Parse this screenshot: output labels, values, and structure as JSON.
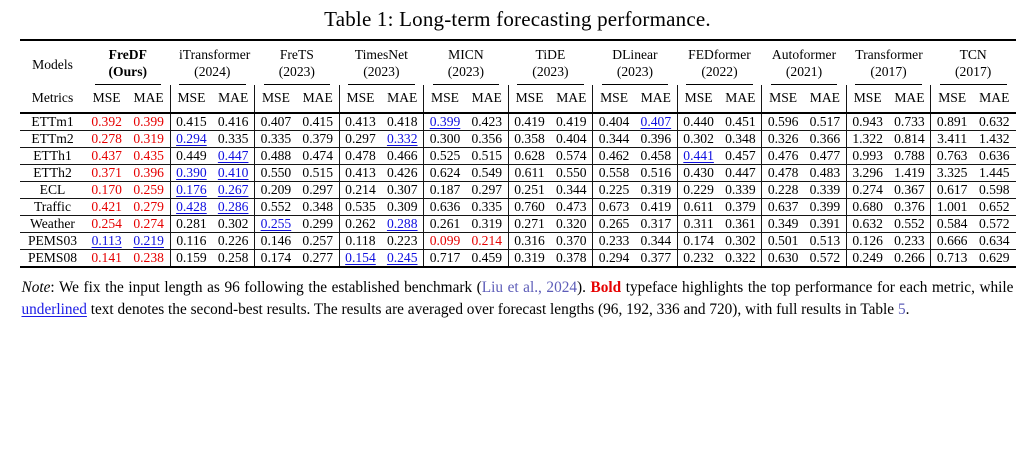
{
  "title": "Table 1: Long-term forecasting performance.",
  "colors": {
    "best_value": "#e60000",
    "second_best_value": "#0f0fe0",
    "citation_link": "#5c5cb8",
    "rule": "#000000",
    "background": "#ffffff"
  },
  "table": {
    "models_label": "Models",
    "metrics_label": "Metrics",
    "metrics": [
      "MSE",
      "MAE"
    ],
    "models": [
      {
        "name": "FreDF",
        "year": "(Ours)",
        "emph": true
      },
      {
        "name": "iTransformer",
        "year": "(2024)",
        "emph": false
      },
      {
        "name": "FreTS",
        "year": "(2023)",
        "emph": false
      },
      {
        "name": "TimesNet",
        "year": "(2023)",
        "emph": false
      },
      {
        "name": "MICN",
        "year": "(2023)",
        "emph": false
      },
      {
        "name": "TiDE",
        "year": "(2023)",
        "emph": false
      },
      {
        "name": "DLinear",
        "year": "(2023)",
        "emph": false
      },
      {
        "name": "FEDformer",
        "year": "(2022)",
        "emph": false
      },
      {
        "name": "Autoformer",
        "year": "(2021)",
        "emph": false
      },
      {
        "name": "Transformer",
        "year": "(2017)",
        "emph": false
      },
      {
        "name": "TCN",
        "year": "(2017)",
        "emph": false
      }
    ],
    "rows": [
      {
        "dataset": "ETTm1",
        "cells": [
          [
            "0.392",
            "b"
          ],
          [
            "0.399",
            "b"
          ],
          [
            "0.415",
            ""
          ],
          [
            "0.416",
            ""
          ],
          [
            "0.407",
            ""
          ],
          [
            "0.415",
            ""
          ],
          [
            "0.413",
            ""
          ],
          [
            "0.418",
            ""
          ],
          [
            "0.399",
            "u"
          ],
          [
            "0.423",
            ""
          ],
          [
            "0.419",
            ""
          ],
          [
            "0.419",
            ""
          ],
          [
            "0.404",
            ""
          ],
          [
            "0.407",
            "u"
          ],
          [
            "0.440",
            ""
          ],
          [
            "0.451",
            ""
          ],
          [
            "0.596",
            ""
          ],
          [
            "0.517",
            ""
          ],
          [
            "0.943",
            ""
          ],
          [
            "0.733",
            ""
          ],
          [
            "0.891",
            ""
          ],
          [
            "0.632",
            ""
          ]
        ]
      },
      {
        "dataset": "ETTm2",
        "cells": [
          [
            "0.278",
            "b"
          ],
          [
            "0.319",
            "b"
          ],
          [
            "0.294",
            "u"
          ],
          [
            "0.335",
            ""
          ],
          [
            "0.335",
            ""
          ],
          [
            "0.379",
            ""
          ],
          [
            "0.297",
            ""
          ],
          [
            "0.332",
            "u"
          ],
          [
            "0.300",
            ""
          ],
          [
            "0.356",
            ""
          ],
          [
            "0.358",
            ""
          ],
          [
            "0.404",
            ""
          ],
          [
            "0.344",
            ""
          ],
          [
            "0.396",
            ""
          ],
          [
            "0.302",
            ""
          ],
          [
            "0.348",
            ""
          ],
          [
            "0.326",
            ""
          ],
          [
            "0.366",
            ""
          ],
          [
            "1.322",
            ""
          ],
          [
            "0.814",
            ""
          ],
          [
            "3.411",
            ""
          ],
          [
            "1.432",
            ""
          ]
        ]
      },
      {
        "dataset": "ETTh1",
        "cells": [
          [
            "0.437",
            "b"
          ],
          [
            "0.435",
            "b"
          ],
          [
            "0.449",
            ""
          ],
          [
            "0.447",
            "u"
          ],
          [
            "0.488",
            ""
          ],
          [
            "0.474",
            ""
          ],
          [
            "0.478",
            ""
          ],
          [
            "0.466",
            ""
          ],
          [
            "0.525",
            ""
          ],
          [
            "0.515",
            ""
          ],
          [
            "0.628",
            ""
          ],
          [
            "0.574",
            ""
          ],
          [
            "0.462",
            ""
          ],
          [
            "0.458",
            ""
          ],
          [
            "0.441",
            "u"
          ],
          [
            "0.457",
            ""
          ],
          [
            "0.476",
            ""
          ],
          [
            "0.477",
            ""
          ],
          [
            "0.993",
            ""
          ],
          [
            "0.788",
            ""
          ],
          [
            "0.763",
            ""
          ],
          [
            "0.636",
            ""
          ]
        ]
      },
      {
        "dataset": "ETTh2",
        "cells": [
          [
            "0.371",
            "b"
          ],
          [
            "0.396",
            "b"
          ],
          [
            "0.390",
            "u"
          ],
          [
            "0.410",
            "u"
          ],
          [
            "0.550",
            ""
          ],
          [
            "0.515",
            ""
          ],
          [
            "0.413",
            ""
          ],
          [
            "0.426",
            ""
          ],
          [
            "0.624",
            ""
          ],
          [
            "0.549",
            ""
          ],
          [
            "0.611",
            ""
          ],
          [
            "0.550",
            ""
          ],
          [
            "0.558",
            ""
          ],
          [
            "0.516",
            ""
          ],
          [
            "0.430",
            ""
          ],
          [
            "0.447",
            ""
          ],
          [
            "0.478",
            ""
          ],
          [
            "0.483",
            ""
          ],
          [
            "3.296",
            ""
          ],
          [
            "1.419",
            ""
          ],
          [
            "3.325",
            ""
          ],
          [
            "1.445",
            ""
          ]
        ]
      },
      {
        "dataset": "ECL",
        "cells": [
          [
            "0.170",
            "b"
          ],
          [
            "0.259",
            "b"
          ],
          [
            "0.176",
            "u"
          ],
          [
            "0.267",
            "u"
          ],
          [
            "0.209",
            ""
          ],
          [
            "0.297",
            ""
          ],
          [
            "0.214",
            ""
          ],
          [
            "0.307",
            ""
          ],
          [
            "0.187",
            ""
          ],
          [
            "0.297",
            ""
          ],
          [
            "0.251",
            ""
          ],
          [
            "0.344",
            ""
          ],
          [
            "0.225",
            ""
          ],
          [
            "0.319",
            ""
          ],
          [
            "0.229",
            ""
          ],
          [
            "0.339",
            ""
          ],
          [
            "0.228",
            ""
          ],
          [
            "0.339",
            ""
          ],
          [
            "0.274",
            ""
          ],
          [
            "0.367",
            ""
          ],
          [
            "0.617",
            ""
          ],
          [
            "0.598",
            ""
          ]
        ]
      },
      {
        "dataset": "Traffic",
        "cells": [
          [
            "0.421",
            "b"
          ],
          [
            "0.279",
            "b"
          ],
          [
            "0.428",
            "u"
          ],
          [
            "0.286",
            "u"
          ],
          [
            "0.552",
            ""
          ],
          [
            "0.348",
            ""
          ],
          [
            "0.535",
            ""
          ],
          [
            "0.309",
            ""
          ],
          [
            "0.636",
            ""
          ],
          [
            "0.335",
            ""
          ],
          [
            "0.760",
            ""
          ],
          [
            "0.473",
            ""
          ],
          [
            "0.673",
            ""
          ],
          [
            "0.419",
            ""
          ],
          [
            "0.611",
            ""
          ],
          [
            "0.379",
            ""
          ],
          [
            "0.637",
            ""
          ],
          [
            "0.399",
            ""
          ],
          [
            "0.680",
            ""
          ],
          [
            "0.376",
            ""
          ],
          [
            "1.001",
            ""
          ],
          [
            "0.652",
            ""
          ]
        ]
      },
      {
        "dataset": "Weather",
        "cells": [
          [
            "0.254",
            "b"
          ],
          [
            "0.274",
            "b"
          ],
          [
            "0.281",
            ""
          ],
          [
            "0.302",
            ""
          ],
          [
            "0.255",
            "u"
          ],
          [
            "0.299",
            ""
          ],
          [
            "0.262",
            ""
          ],
          [
            "0.288",
            "u"
          ],
          [
            "0.261",
            ""
          ],
          [
            "0.319",
            ""
          ],
          [
            "0.271",
            ""
          ],
          [
            "0.320",
            ""
          ],
          [
            "0.265",
            ""
          ],
          [
            "0.317",
            ""
          ],
          [
            "0.311",
            ""
          ],
          [
            "0.361",
            ""
          ],
          [
            "0.349",
            ""
          ],
          [
            "0.391",
            ""
          ],
          [
            "0.632",
            ""
          ],
          [
            "0.552",
            ""
          ],
          [
            "0.584",
            ""
          ],
          [
            "0.572",
            ""
          ]
        ]
      },
      {
        "dataset": "PEMS03",
        "cells": [
          [
            "0.113",
            "u"
          ],
          [
            "0.219",
            "u"
          ],
          [
            "0.116",
            ""
          ],
          [
            "0.226",
            ""
          ],
          [
            "0.146",
            ""
          ],
          [
            "0.257",
            ""
          ],
          [
            "0.118",
            ""
          ],
          [
            "0.223",
            ""
          ],
          [
            "0.099",
            "b"
          ],
          [
            "0.214",
            "b"
          ],
          [
            "0.316",
            ""
          ],
          [
            "0.370",
            ""
          ],
          [
            "0.233",
            ""
          ],
          [
            "0.344",
            ""
          ],
          [
            "0.174",
            ""
          ],
          [
            "0.302",
            ""
          ],
          [
            "0.501",
            ""
          ],
          [
            "0.513",
            ""
          ],
          [
            "0.126",
            ""
          ],
          [
            "0.233",
            ""
          ],
          [
            "0.666",
            ""
          ],
          [
            "0.634",
            ""
          ]
        ]
      },
      {
        "dataset": "PEMS08",
        "cells": [
          [
            "0.141",
            "b"
          ],
          [
            "0.238",
            "b"
          ],
          [
            "0.159",
            ""
          ],
          [
            "0.258",
            ""
          ],
          [
            "0.174",
            ""
          ],
          [
            "0.277",
            ""
          ],
          [
            "0.154",
            "u"
          ],
          [
            "0.245",
            "u"
          ],
          [
            "0.717",
            ""
          ],
          [
            "0.459",
            ""
          ],
          [
            "0.319",
            ""
          ],
          [
            "0.378",
            ""
          ],
          [
            "0.294",
            ""
          ],
          [
            "0.377",
            ""
          ],
          [
            "0.232",
            ""
          ],
          [
            "0.322",
            ""
          ],
          [
            "0.630",
            ""
          ],
          [
            "0.572",
            ""
          ],
          [
            "0.249",
            ""
          ],
          [
            "0.266",
            ""
          ],
          [
            "0.713",
            ""
          ],
          [
            "0.629",
            ""
          ]
        ]
      }
    ]
  },
  "note": {
    "segments": [
      {
        "t": "Note",
        "style": "italic"
      },
      {
        "t": ": We fix the input length as 96 following the established benchmark (",
        "style": ""
      },
      {
        "t": "Liu et al., 2024",
        "style": "cite"
      },
      {
        "t": "). ",
        "style": ""
      },
      {
        "t": "Bold",
        "style": "bold-red"
      },
      {
        "t": " typeface highlights the top performance for each metric, while ",
        "style": ""
      },
      {
        "t": "underlined",
        "style": "underline-blue"
      },
      {
        "t": " text denotes the second-best results. The results are averaged over forecast lengths (96, 192, 336 and 720), with full results in Table ",
        "style": ""
      },
      {
        "t": "5",
        "style": "cite"
      },
      {
        "t": ".",
        "style": ""
      }
    ]
  }
}
